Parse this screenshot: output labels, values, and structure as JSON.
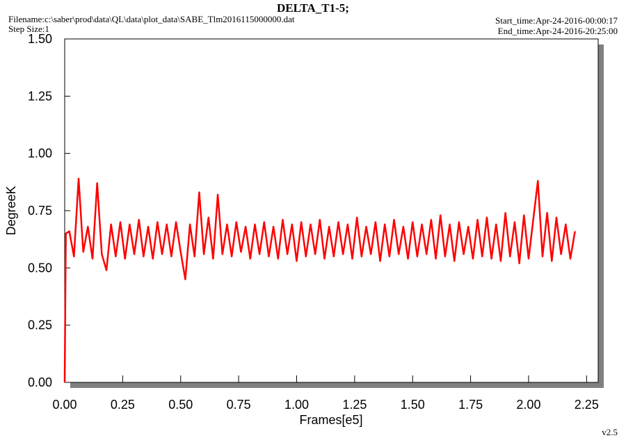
{
  "chart_data": {
    "type": "line",
    "title": "DELTA_T1-5;",
    "filename": "Filename:c:\\saber\\prod\\data\\QL\\data\\plot_data\\SABE_Tlm2016115000000.dat",
    "step_size": "Step Size:1",
    "start_time": "Start_time:Apr-24-2016-00:00:17",
    "end_time": "End_time:Apr-24-2016-20:25:00",
    "version": "v2.5",
    "x_label": "Frames[e5]",
    "y_label": "DegreeK",
    "xlim": [
      0,
      2.3
    ],
    "ylim": [
      0,
      1.5
    ],
    "xticks": [
      {
        "value": 0,
        "label": "0.00"
      },
      0.25,
      {
        "value": 0.5,
        "label": "0.50"
      },
      0.75,
      {
        "value": 1,
        "label": "1.00"
      },
      1.25,
      {
        "value": 1.5,
        "label": "1.50"
      },
      1.75,
      {
        "value": 2,
        "label": "2.00"
      },
      2.25
    ],
    "yticks": [
      {
        "value": 0,
        "label": "0.00"
      },
      0.25,
      {
        "value": 0.5,
        "label": "0.50"
      },
      0.75,
      {
        "value": 1,
        "label": "1.00"
      },
      1.25,
      {
        "value": 1.5,
        "label": "1.50"
      }
    ],
    "series": [
      {
        "color": "#ff0000",
        "x": [
          0,
          0.005,
          0.02,
          0.04,
          0.06,
          0.08,
          0.1,
          0.12,
          0.14,
          0.16,
          0.18,
          0.2,
          0.22,
          0.24,
          0.26,
          0.28,
          0.3,
          0.32,
          0.34,
          0.36,
          0.38,
          0.4,
          0.42,
          0.44,
          0.46,
          0.48,
          0.5,
          0.52,
          0.54,
          0.56,
          0.58,
          0.6,
          0.62,
          0.64,
          0.66,
          0.68,
          0.7,
          0.72,
          0.74,
          0.76,
          0.78,
          0.8,
          0.82,
          0.84,
          0.86,
          0.88,
          0.9,
          0.92,
          0.94,
          0.96,
          0.98,
          1.0,
          1.02,
          1.04,
          1.06,
          1.08,
          1.1,
          1.12,
          1.14,
          1.16,
          1.18,
          1.2,
          1.22,
          1.24,
          1.26,
          1.28,
          1.3,
          1.32,
          1.34,
          1.36,
          1.38,
          1.4,
          1.42,
          1.44,
          1.46,
          1.48,
          1.5,
          1.52,
          1.54,
          1.56,
          1.58,
          1.6,
          1.62,
          1.64,
          1.66,
          1.68,
          1.7,
          1.72,
          1.74,
          1.76,
          1.78,
          1.8,
          1.82,
          1.84,
          1.86,
          1.88,
          1.9,
          1.92,
          1.94,
          1.96,
          1.98,
          2.0,
          2.02,
          2.04,
          2.06,
          2.08,
          2.1,
          2.12,
          2.14,
          2.16,
          2.18,
          2.2
        ],
        "values": [
          0,
          0.65,
          0.66,
          0.55,
          0.89,
          0.57,
          0.68,
          0.54,
          0.87,
          0.56,
          0.49,
          0.69,
          0.55,
          0.7,
          0.54,
          0.69,
          0.56,
          0.71,
          0.55,
          0.68,
          0.54,
          0.7,
          0.56,
          0.69,
          0.55,
          0.7,
          0.57,
          0.45,
          0.69,
          0.55,
          0.83,
          0.56,
          0.72,
          0.54,
          0.82,
          0.56,
          0.69,
          0.55,
          0.7,
          0.57,
          0.68,
          0.54,
          0.69,
          0.56,
          0.7,
          0.55,
          0.68,
          0.54,
          0.71,
          0.56,
          0.69,
          0.53,
          0.7,
          0.55,
          0.69,
          0.56,
          0.71,
          0.54,
          0.68,
          0.55,
          0.7,
          0.56,
          0.69,
          0.54,
          0.72,
          0.55,
          0.68,
          0.56,
          0.7,
          0.53,
          0.69,
          0.55,
          0.71,
          0.56,
          0.68,
          0.54,
          0.7,
          0.55,
          0.69,
          0.56,
          0.71,
          0.54,
          0.73,
          0.55,
          0.69,
          0.53,
          0.7,
          0.56,
          0.68,
          0.54,
          0.71,
          0.55,
          0.72,
          0.54,
          0.69,
          0.53,
          0.74,
          0.55,
          0.7,
          0.52,
          0.73,
          0.54,
          0.71,
          0.88,
          0.55,
          0.74,
          0.53,
          0.72,
          0.56,
          0.69,
          0.54,
          0.66
        ]
      }
    ]
  }
}
